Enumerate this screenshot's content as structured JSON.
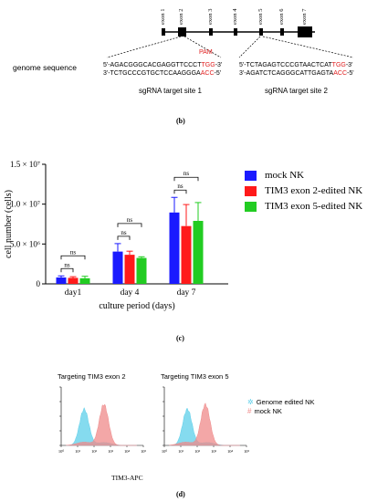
{
  "gene_map": {
    "exon_labels": [
      "exon 1",
      "exon 2",
      "exon 3",
      "exon 4",
      "exon 5",
      "exon 6",
      "exon 7"
    ],
    "genome_sequence_label": "genome sequence",
    "pam_label": "PAM",
    "site1": {
      "line1": {
        "a": "5'-AGACGGGCACGAGGTTCCCT",
        "b": "TGG",
        "c": "-3'"
      },
      "line2": {
        "a": "3'-TCTGCCCGTGCTCCAAGGGA",
        "b": "ACC",
        "c": "-5'"
      },
      "caption": "sgRNA target site 1"
    },
    "site2": {
      "line1": {
        "a": "5'-TCTAGAGTCCCGTAACTCAT",
        "b": "TGG",
        "c": "-3'"
      },
      "line2": {
        "a": "3'-AGATCTCAGGGCATTGAGTA",
        "b": "ACC",
        "c": "-5'"
      },
      "caption": "sgRNA target site 2"
    }
  },
  "panel_labels": {
    "b": "(b)",
    "c": "(c)",
    "d": "(d)"
  },
  "colors": {
    "mock": "#1a1aff",
    "exon2": "#ff1a1a",
    "exon5": "#22cc22",
    "hist_edited": "#5ccfea",
    "hist_mock": "#ef8a8a"
  },
  "chart_data": [
    {
      "type": "bar",
      "categories": [
        "day1",
        "day 4",
        "day 7"
      ],
      "series": [
        {
          "name": "mock NK",
          "values": [
            800000,
            4050000,
            8950000
          ],
          "errors": [
            200000,
            1000000,
            1900000
          ]
        },
        {
          "name": "TIM3 exon 2-edited NK",
          "values": [
            750000,
            3650000,
            7250000
          ],
          "errors": [
            150000,
            450000,
            2700000
          ]
        },
        {
          "name": "TIM3 exon 5-edited NK",
          "values": [
            700000,
            3250000,
            7900000
          ],
          "errors": [
            250000,
            150000,
            2300000
          ]
        }
      ],
      "ylabel": "cell number (cells)",
      "xlabel": "culture period (days)",
      "ylim": [
        0,
        15000000
      ],
      "yticks": [
        "0",
        "5.0 × 10⁶",
        "1.0 × 10⁷",
        "1.5 × 10⁷"
      ],
      "significance": [
        "ns",
        "ns",
        "ns",
        "ns",
        "ns",
        "ns"
      ],
      "legend_position": "right"
    },
    {
      "type": "area",
      "title": "Targeting TIM3 exon 2",
      "xlabel": "TIM3-APC",
      "xticks": [
        "10⁰",
        "10¹",
        "10²",
        "10³",
        "10⁴",
        "10⁵"
      ],
      "series": [
        {
          "name": "Genome edited NK",
          "peak_log": 1.4
        },
        {
          "name": "mock NK",
          "peak_log": 2.6
        }
      ]
    },
    {
      "type": "area",
      "title": "Targeting TIM3 exon 5",
      "xticks": [
        "10⁰",
        "10¹",
        "10²",
        "10³",
        "10⁴",
        "10⁵"
      ],
      "series": [
        {
          "name": "Genome edited NK",
          "peak_log": 1.4
        },
        {
          "name": "mock NK",
          "peak_log": 2.5
        }
      ],
      "legend_position": "right"
    }
  ]
}
